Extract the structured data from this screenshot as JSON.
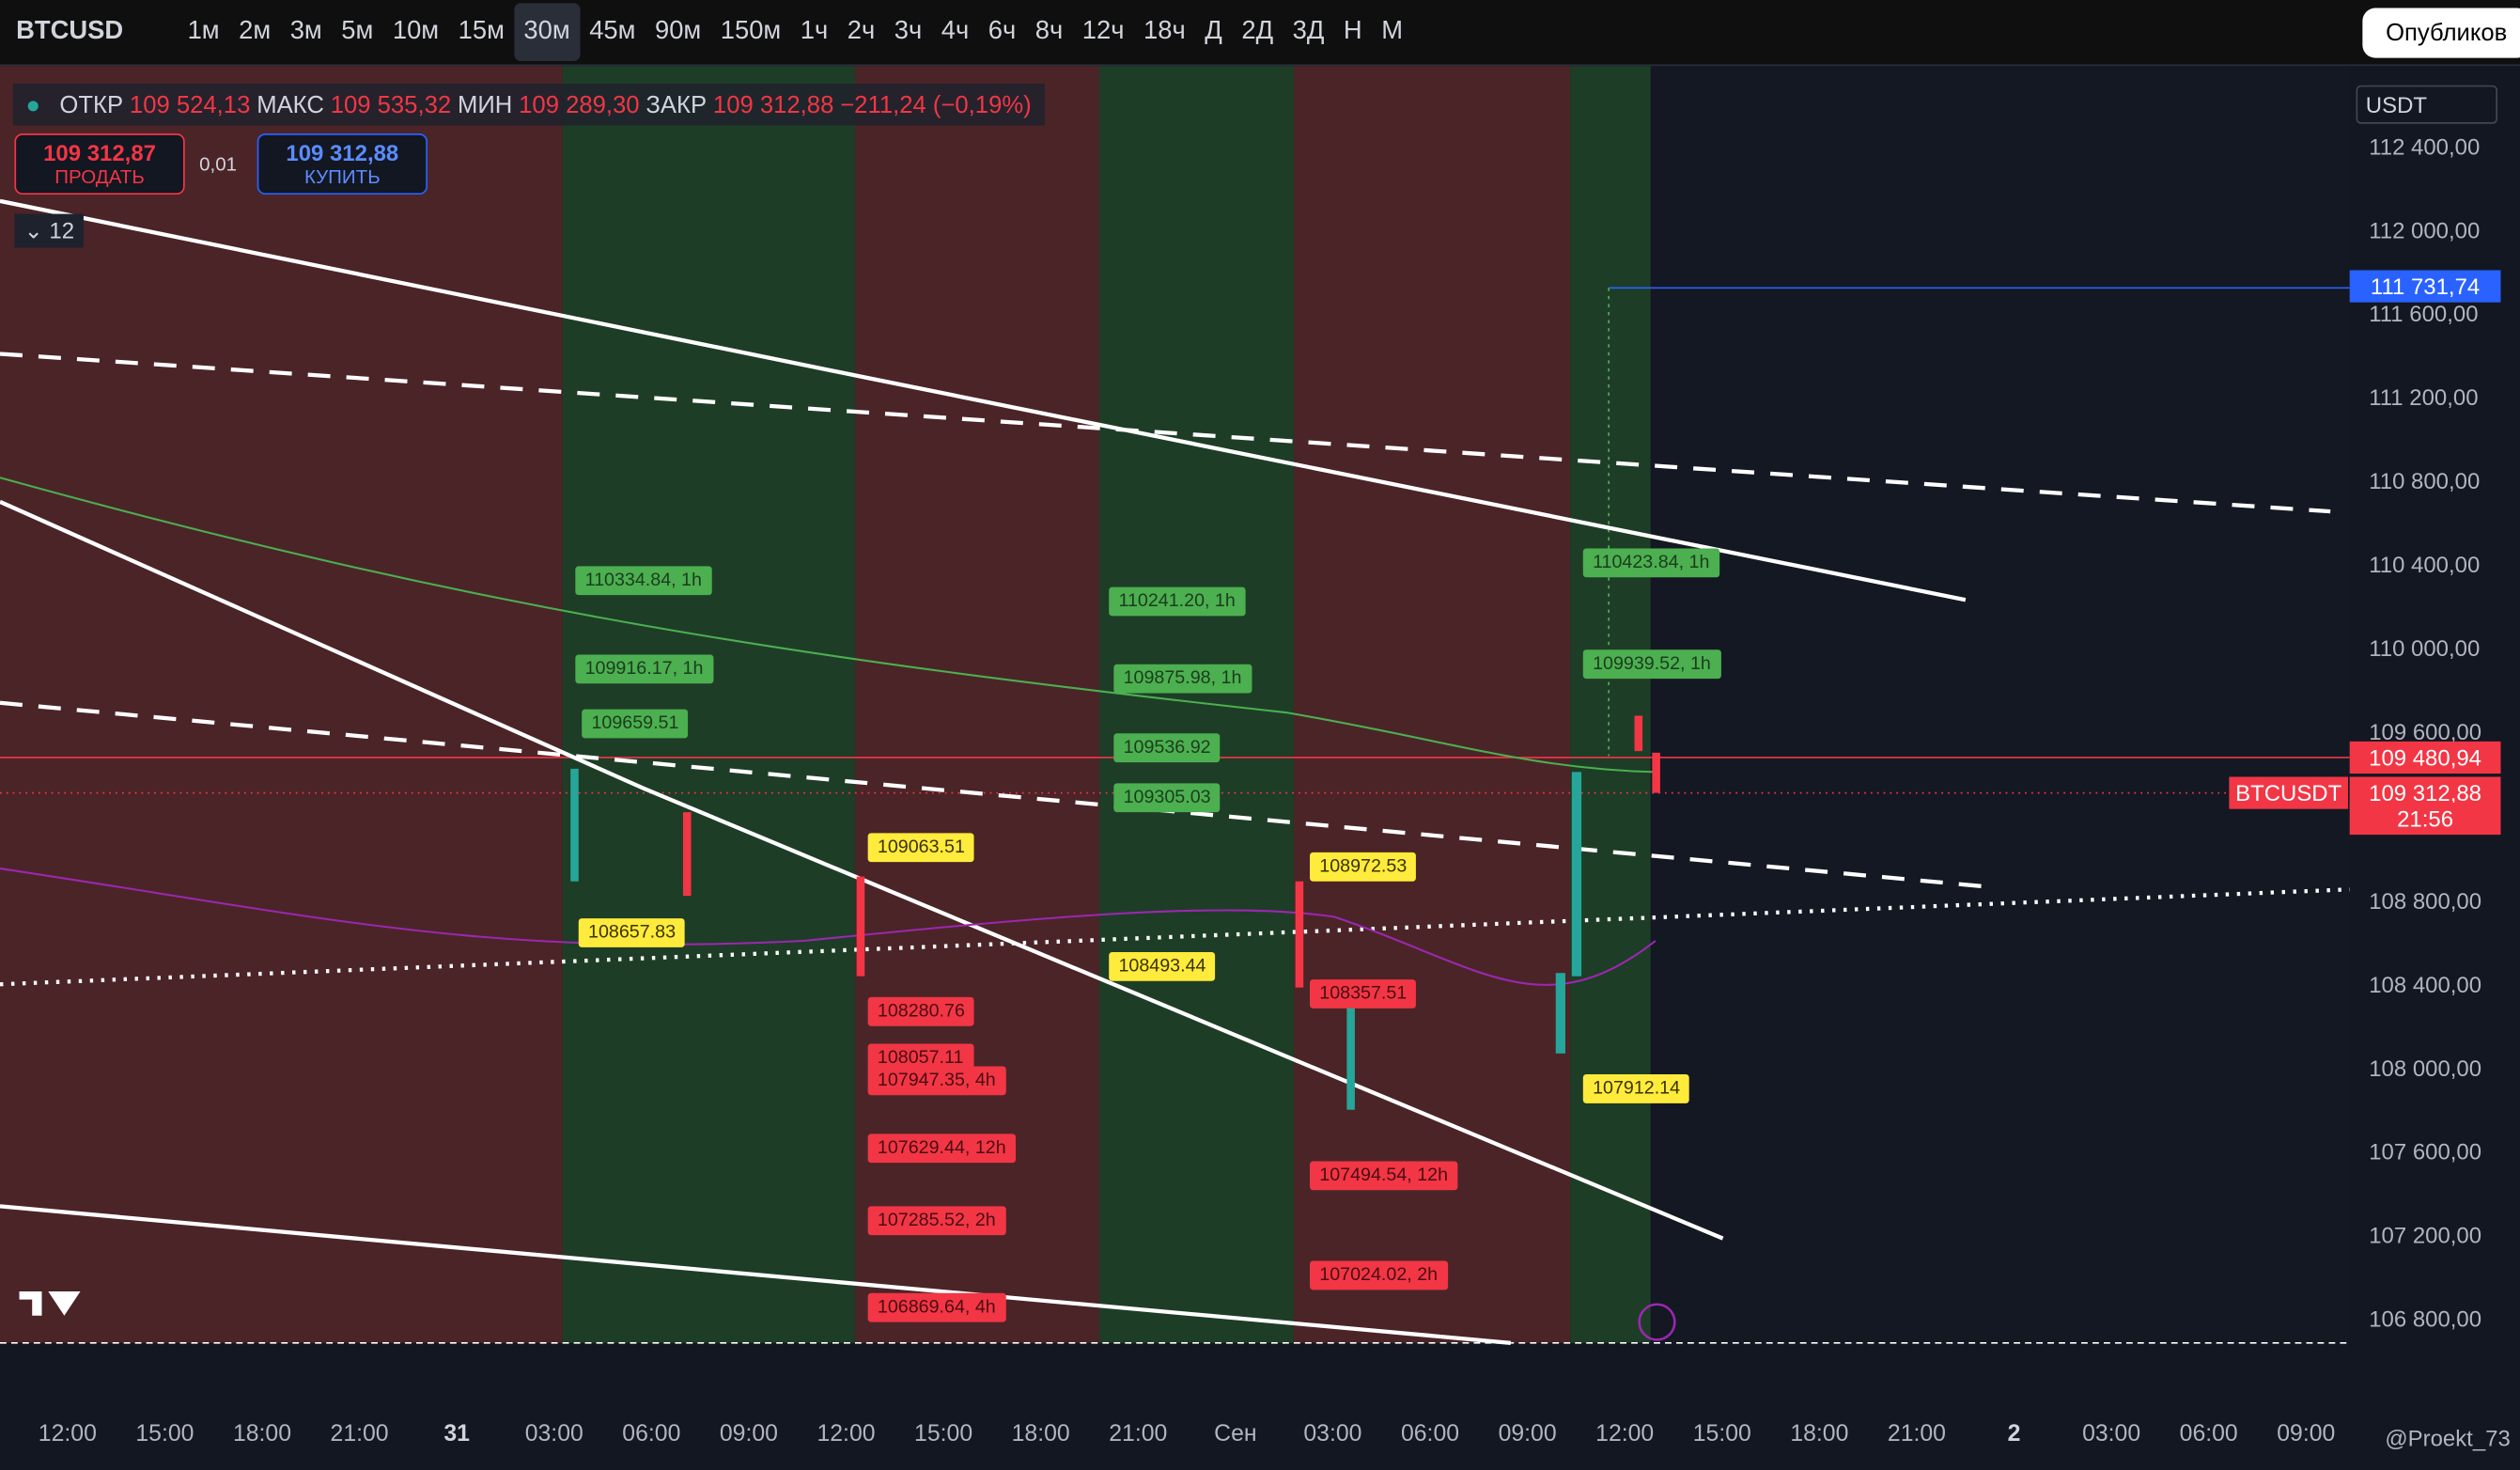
{
  "toolbar": {
    "symbol": "BTCUSD",
    "intervals": [
      "1м",
      "2м",
      "3м",
      "5м",
      "10м",
      "15м",
      "30м",
      "45м",
      "90м",
      "150м",
      "1ч",
      "2ч",
      "3ч",
      "4ч",
      "6ч",
      "8ч",
      "12ч",
      "18ч",
      "Д",
      "2Д",
      "3Д",
      "Н",
      "М"
    ],
    "active_interval": "30м",
    "publish": "Опубликов"
  },
  "legend": {
    "open_label": "ОТКР",
    "open": "109 524,13",
    "high_label": "МАКС",
    "high": "109 535,32",
    "low_label": "МИН",
    "low": "109 289,30",
    "close_label": "ЗАКР",
    "close": "109 312,88",
    "change": "−211,24 (−0,19%)"
  },
  "trade": {
    "sell_price": "109 312,87",
    "sell": "ПРОДАТЬ",
    "spread": "0,01",
    "buy_price": "109 312,88",
    "buy": "КУПИТЬ"
  },
  "indicators_count": "12",
  "currency": "USDT",
  "price_axis": {
    "ticks": [
      {
        "value": 112400,
        "label": "112 400,00"
      },
      {
        "value": 112000,
        "label": "112 000,00"
      },
      {
        "value": 111600,
        "label": "111 600,00"
      },
      {
        "value": 111200,
        "label": "111 200,00"
      },
      {
        "value": 110800,
        "label": "110 800,00"
      },
      {
        "value": 110400,
        "label": "110 400,00"
      },
      {
        "value": 110000,
        "label": "110 000,00"
      },
      {
        "value": 109600,
        "label": "109 600,00"
      },
      {
        "value": 108800,
        "label": "108 800,00"
      },
      {
        "value": 108400,
        "label": "108 400,00"
      },
      {
        "value": 108000,
        "label": "108 000,00"
      },
      {
        "value": 107600,
        "label": "107 600,00"
      },
      {
        "value": 107200,
        "label": "107 200,00"
      },
      {
        "value": 106800,
        "label": "106 800,00"
      }
    ],
    "markers": [
      {
        "value": 111731.74,
        "label": "111 731,74",
        "style": "blue"
      },
      {
        "value": 109480.94,
        "label": "109 480,94",
        "style": "red"
      },
      {
        "value": 109312.88,
        "label": "109 312,88",
        "style": "red",
        "countdown": "21:56",
        "symbol": "BTCUSDT"
      }
    ]
  },
  "annotations": [
    {
      "text": "110334.84, 1h",
      "style": "green"
    },
    {
      "text": "109916.17, 1h",
      "style": "green"
    },
    {
      "text": "109659.51",
      "style": "green"
    },
    {
      "text": "110241.20, 1h",
      "style": "green"
    },
    {
      "text": "109875.98, 1h",
      "style": "green"
    },
    {
      "text": "109536.92",
      "style": "green"
    },
    {
      "text": "109305.03",
      "style": "green"
    },
    {
      "text": "110423.84, 1h",
      "style": "green"
    },
    {
      "text": "109939.52, 1h",
      "style": "green"
    },
    {
      "text": "109063.51",
      "style": "yellow"
    },
    {
      "text": "108657.83",
      "style": "yellow"
    },
    {
      "text": "108493.44",
      "style": "yellow"
    },
    {
      "text": "108972.53",
      "style": "yellow"
    },
    {
      "text": "107912.14",
      "style": "yellow"
    },
    {
      "text": "108280.76",
      "style": "red"
    },
    {
      "text": "108057.11",
      "style": "red"
    },
    {
      "text": "107947.35, 4h",
      "style": "red"
    },
    {
      "text": "107629.44, 12h",
      "style": "red"
    },
    {
      "text": "107285.52, 2h",
      "style": "red"
    },
    {
      "text": "106869.64, 4h",
      "style": "red"
    },
    {
      "text": "108357.51",
      "style": "red"
    },
    {
      "text": "107494.54, 12h",
      "style": "red"
    },
    {
      "text": "107024.02, 2h",
      "style": "red"
    }
  ],
  "time_axis": [
    "12:00",
    "15:00",
    "18:00",
    "21:00",
    "31",
    "03:00",
    "06:00",
    "09:00",
    "12:00",
    "15:00",
    "18:00",
    "21:00",
    "Сен",
    "03:00",
    "06:00",
    "09:00",
    "12:00",
    "15:00",
    "18:00",
    "21:00",
    "2",
    "03:00",
    "06:00",
    "09:00"
  ],
  "watermark": "@Proekt_73"
}
